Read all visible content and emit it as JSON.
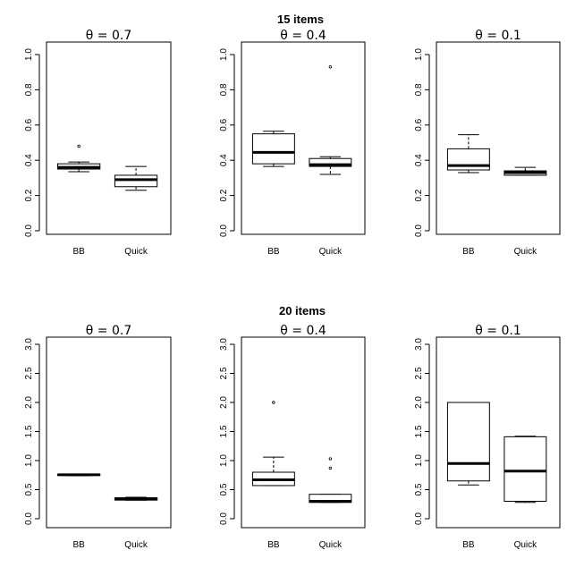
{
  "chart_data": [
    {
      "group": "15 items",
      "type": "boxplot",
      "title": "θ = 0.7",
      "categories": [
        "BB",
        "Quick"
      ],
      "ylim": [
        0,
        1.0
      ],
      "yticks": [
        "0.0",
        "0.2",
        "0.4",
        "0.6",
        "0.8",
        "1.0"
      ],
      "boxes": [
        {
          "name": "BB",
          "min": 0.335,
          "q1": 0.35,
          "median": 0.36,
          "q3": 0.38,
          "max": 0.39,
          "outliers": [
            0.48
          ]
        },
        {
          "name": "Quick",
          "min": 0.23,
          "q1": 0.25,
          "median": 0.29,
          "q3": 0.315,
          "max": 0.365,
          "outliers": []
        }
      ]
    },
    {
      "group": "15 items",
      "type": "boxplot",
      "title": "θ = 0.4",
      "categories": [
        "BB",
        "Quick"
      ],
      "ylim": [
        0,
        1.0
      ],
      "yticks": [
        "0.0",
        "0.2",
        "0.4",
        "0.6",
        "0.8",
        "1.0"
      ],
      "boxes": [
        {
          "name": "BB",
          "min": 0.365,
          "q1": 0.38,
          "median": 0.445,
          "q3": 0.55,
          "max": 0.565,
          "outliers": []
        },
        {
          "name": "Quick",
          "min": 0.32,
          "q1": 0.365,
          "median": 0.375,
          "q3": 0.41,
          "max": 0.42,
          "outliers": [
            0.93
          ]
        }
      ]
    },
    {
      "group": "15 items",
      "type": "boxplot",
      "title": "θ = 0.1",
      "categories": [
        "BB",
        "Quick"
      ],
      "ylim": [
        0,
        1.0
      ],
      "yticks": [
        "0.0",
        "0.2",
        "0.4",
        "0.6",
        "0.8",
        "1.0"
      ],
      "boxes": [
        {
          "name": "BB",
          "min": 0.33,
          "q1": 0.345,
          "median": 0.37,
          "q3": 0.465,
          "max": 0.545,
          "outliers": []
        },
        {
          "name": "Quick",
          "min": 0.315,
          "q1": 0.315,
          "median": 0.33,
          "q3": 0.34,
          "max": 0.36,
          "outliers": []
        }
      ]
    },
    {
      "group": "20 items",
      "type": "boxplot",
      "title": "θ = 0.7",
      "categories": [
        "BB",
        "Quick"
      ],
      "ylim": [
        0,
        3.0
      ],
      "yticks": [
        "0.0",
        "0.5",
        "1.0",
        "1.5",
        "2.0",
        "2.5",
        "3.0"
      ],
      "boxes": [
        {
          "name": "BB",
          "min": 0.74,
          "q1": 0.745,
          "median": 0.755,
          "q3": 0.765,
          "max": 0.77,
          "outliers": []
        },
        {
          "name": "Quick",
          "min": 0.32,
          "q1": 0.32,
          "median": 0.34,
          "q3": 0.36,
          "max": 0.37,
          "outliers": []
        }
      ]
    },
    {
      "group": "20 items",
      "type": "boxplot",
      "title": "θ = 0.4",
      "categories": [
        "BB",
        "Quick"
      ],
      "ylim": [
        0,
        3.0
      ],
      "yticks": [
        "0.0",
        "0.5",
        "1.0",
        "1.5",
        "2.0",
        "2.5",
        "3.0"
      ],
      "boxes": [
        {
          "name": "BB",
          "min": 0.57,
          "q1": 0.57,
          "median": 0.67,
          "q3": 0.8,
          "max": 1.06,
          "outliers": [
            2.0
          ]
        },
        {
          "name": "Quick",
          "min": 0.28,
          "q1": 0.28,
          "median": 0.3,
          "q3": 0.42,
          "max": 0.42,
          "outliers": [
            0.87,
            1.03
          ]
        }
      ]
    },
    {
      "group": "20 items",
      "type": "boxplot",
      "title": "θ = 0.1",
      "categories": [
        "BB",
        "Quick"
      ],
      "ylim": [
        0,
        3.0
      ],
      "yticks": [
        "0.0",
        "0.5",
        "1.0",
        "1.5",
        "2.0",
        "2.5",
        "3.0"
      ],
      "boxes": [
        {
          "name": "BB",
          "min": 0.58,
          "q1": 0.65,
          "median": 0.95,
          "q3": 2.0,
          "max": 2.0,
          "outliers": []
        },
        {
          "name": "Quick",
          "min": 0.28,
          "q1": 0.3,
          "median": 0.82,
          "q3": 1.41,
          "max": 1.42,
          "outliers": []
        }
      ]
    }
  ],
  "group_titles": [
    "15 items",
    "20 items"
  ]
}
